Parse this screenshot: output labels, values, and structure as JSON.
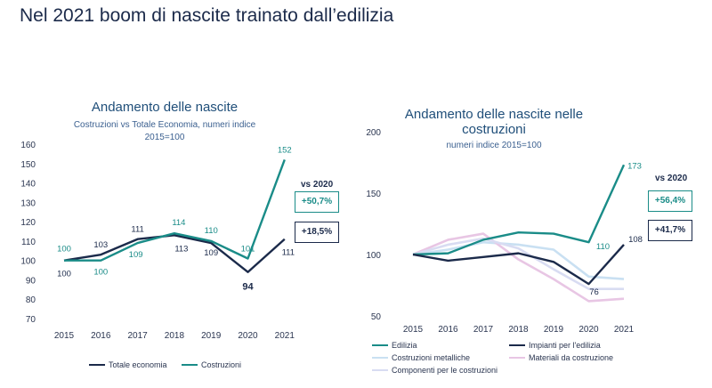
{
  "page_title": "Nel 2021 boom di nascite trainato dall’edilizia",
  "chart_data": [
    {
      "type": "line",
      "title": "Andamento delle nascite",
      "subtitle_line1": "Costruzioni vs Totale Economia, numeri indice",
      "subtitle_line2": "2015=100",
      "x": [
        "2015",
        "2016",
        "2017",
        "2018",
        "2019",
        "2020",
        "2021"
      ],
      "ylim": [
        70,
        160
      ],
      "yticks": [
        "70",
        "80",
        "90",
        "100",
        "110",
        "120",
        "130",
        "140",
        "150",
        "160"
      ],
      "grid": false,
      "legend_position": "bottom",
      "series": [
        {
          "name": "Totale economia",
          "color": "#1b2a4a",
          "values": [
            100,
            103,
            111,
            113,
            109,
            94,
            111
          ],
          "labels": [
            "100",
            "103",
            "111",
            "113",
            "109",
            "94",
            "111"
          ]
        },
        {
          "name": "Costruzioni",
          "color": "#1a8c88",
          "values": [
            100,
            100,
            109,
            114,
            110,
            101,
            152
          ],
          "labels": [
            "100",
            "100",
            "109",
            "114",
            "110",
            "101",
            "152"
          ]
        }
      ],
      "vs_label": "vs 2020",
      "boxes": [
        "+50,7%",
        "+18,5%"
      ]
    },
    {
      "type": "line",
      "title_line1": "Andamento delle nascite nelle",
      "title_line2": "costruzioni",
      "subtitle": "numeri indice 2015=100",
      "x": [
        "2015",
        "2016",
        "2017",
        "2018",
        "2019",
        "2020",
        "2021"
      ],
      "ylim": [
        50,
        200
      ],
      "yticks": [
        "50",
        "100",
        "150",
        "200"
      ],
      "grid": false,
      "legend_position": "bottom",
      "series": [
        {
          "name": "Edilizia",
          "color": "#1a8c88",
          "values": [
            100,
            101,
            112,
            118,
            117,
            110,
            173
          ],
          "end_labels": [
            "110",
            "173"
          ]
        },
        {
          "name": "Impianti per l'edilizia",
          "color": "#1b2a4a",
          "values": [
            100,
            95,
            98,
            101,
            94,
            76,
            108
          ],
          "end_labels": [
            "76",
            "108"
          ]
        },
        {
          "name": "Costruzioni metalliche",
          "color": "#c9e0f2",
          "values": [
            100,
            104,
            110,
            108,
            104,
            82,
            80
          ]
        },
        {
          "name": "Materiali da costruzione",
          "color": "#e8c6e4",
          "values": [
            100,
            112,
            117,
            96,
            80,
            62,
            64
          ]
        },
        {
          "name": "Componenti per le costruzioni",
          "color": "#d8dcf2",
          "values": [
            100,
            108,
            113,
            105,
            88,
            72,
            72
          ]
        }
      ],
      "vs_label": "vs 2020",
      "boxes": [
        "+56,4%",
        "+41,7%"
      ]
    }
  ]
}
